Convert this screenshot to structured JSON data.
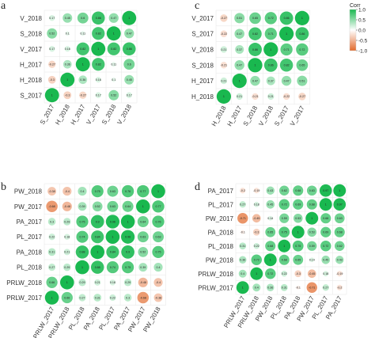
{
  "legend": {
    "title": "Corr",
    "ticks": [
      "1.0",
      "0.5",
      "0.0",
      "-0.5",
      "-1.0"
    ],
    "tick_values": [
      1.0,
      0.5,
      0.0,
      -0.5,
      -1.0
    ],
    "colors": {
      "positive": "#19b84f",
      "neutral": "#ffffff",
      "negative": "#e26a2c"
    }
  },
  "chart_data": [
    {
      "type": "heatmap",
      "panel_label": "a",
      "x_labels": [
        "S_2017",
        "H_2018",
        "H_2017",
        "V_2017",
        "S_2018",
        "V_2018"
      ],
      "y_labels": [
        "V_2018",
        "S_2018",
        "V_2017",
        "H_2017",
        "H_2018",
        "S_2017"
      ],
      "values": [
        [
          0.17,
          0.45,
          0.6,
          0.86,
          0.47,
          1
        ],
        [
          0.52,
          0.1,
          0.11,
          0.82,
          1,
          0.47
        ],
        [
          0.17,
          0.16,
          0.82,
          1,
          0.82,
          0.86
        ],
        [
          -0.27,
          0.36,
          1,
          0.82,
          0.11,
          0.6
        ],
        [
          -0.3,
          1,
          0.36,
          0.16,
          0.1,
          0.45
        ],
        [
          1,
          -0.3,
          -0.27,
          0.17,
          0.52,
          0.17
        ]
      ]
    },
    {
      "type": "heatmap",
      "panel_label": "c",
      "x_labels": [
        "H_2018",
        "H_2017",
        "S_2018",
        "V_2018",
        "S_2017",
        "V_2017"
      ],
      "y_labels": [
        "V_2017",
        "S_2017",
        "V_2018",
        "S_2018",
        "H_2017",
        "H_2018"
      ],
      "values": [
        [
          -0.27,
          0.51,
          0.65,
          0.72,
          0.86,
          1
        ],
        [
          -0.22,
          0.47,
          0.82,
          0.71,
          1,
          0.86
        ],
        [
          0.21,
          0.37,
          0.86,
          1,
          0.71,
          0.72
        ],
        [
          -0.21,
          0.47,
          1,
          0.86,
          0.82,
          0.65
        ],
        [
          0.21,
          1,
          0.47,
          0.37,
          0.47,
          0.51
        ],
        [
          1,
          0.21,
          -0.21,
          0.21,
          -0.22,
          -0.27
        ]
      ]
    },
    {
      "type": "heatmap",
      "panel_label": "b",
      "x_labels": [
        "PRLW_2017",
        "PRLW_2018",
        "PL_2018",
        "PA_2018",
        "PL_2017",
        "PA_2017",
        "PW_2017",
        "PW_2018"
      ],
      "y_labels": [
        "PW_2018",
        "PW_2017",
        "PA_2017",
        "PL_2017",
        "PA_2018",
        "PL_2018",
        "PRLW_2018",
        "PRLW_2017"
      ],
      "values": [
        [
          -0.38,
          -0.4,
          0.4,
          0.75,
          0.63,
          0.76,
          0.77,
          1
        ],
        [
          -0.68,
          -0.48,
          0.39,
          0.52,
          0.63,
          0.64,
          1,
          0.77
        ],
        [
          0.3,
          0.29,
          0.75,
          0.9,
          0.96,
          1,
          0.64,
          0.76
        ],
        [
          0.22,
          0.18,
          0.74,
          0.84,
          1,
          0.96,
          0.63,
          0.63
        ],
        [
          0.31,
          0.21,
          0.88,
          1,
          0.84,
          0.9,
          0.52,
          0.75
        ],
        [
          0.27,
          0.29,
          1,
          0.88,
          0.74,
          0.75,
          0.39,
          0.4
        ],
        [
          0.66,
          1,
          0.29,
          0.21,
          0.18,
          0.29,
          -0.48,
          -0.4
        ],
        [
          1,
          0.66,
          0.27,
          0.31,
          0.22,
          0.3,
          -0.68,
          -0.38
        ]
      ]
    },
    {
      "type": "heatmap",
      "panel_label": "d",
      "x_labels": [
        "PRLW_2017",
        "PRLW_2018",
        "PW_2018",
        "PL_2018",
        "PA_2018",
        "PW_2017",
        "PL_2017",
        "PA_2017"
      ],
      "y_labels": [
        "PA_2017",
        "PL_2017",
        "PW_2017",
        "PA_2018",
        "PL_2018",
        "PW_2018",
        "PRLW_2018",
        "PRLW_2017"
      ],
      "values": [
        [
          -0.2,
          -0.19,
          0.43,
          0.62,
          0.68,
          0.63,
          0.97,
          1
        ],
        [
          0.27,
          0.18,
          0.45,
          0.72,
          0.69,
          0.68,
          1,
          0.97
        ],
        [
          -0.71,
          -0.45,
          0.14,
          0.59,
          0.53,
          1,
          0.68,
          0.63
        ],
        [
          -0.1,
          -0.3,
          0.65,
          0.75,
          1,
          0.53,
          0.69,
          0.68
        ],
        [
          0.31,
          0.22,
          0.68,
          1,
          0.75,
          0.59,
          0.72,
          0.62
        ],
        [
          0.36,
          0.72,
          1,
          0.68,
          0.65,
          0.14,
          0.45,
          0.43
        ],
        [
          0.4,
          1,
          0.72,
          0.22,
          -0.3,
          -0.45,
          0.18,
          -0.19
        ],
        [
          1,
          0.4,
          0.36,
          0.31,
          -0.1,
          -0.71,
          0.27,
          -0.2
        ]
      ]
    }
  ]
}
